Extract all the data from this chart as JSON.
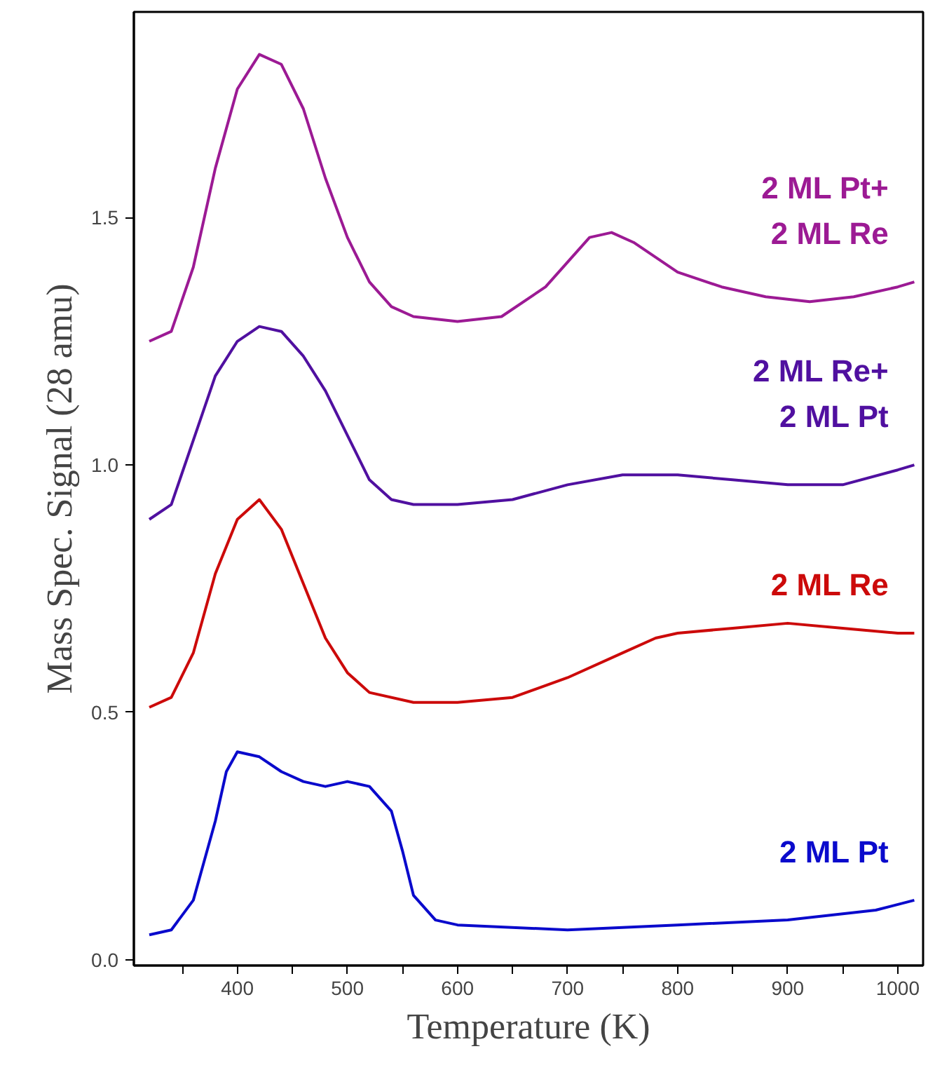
{
  "chart_data": {
    "type": "line",
    "xlabel": "Temperature (K)",
    "ylabel": "Mass Spec. Signal (28 amu)",
    "xlim": [
      306,
      1023
    ],
    "ylim": [
      -0.012,
      1.916
    ],
    "xticks": [
      {
        "value": 350,
        "label": null
      },
      400,
      {
        "value": 450,
        "label": null
      },
      500,
      {
        "value": 550,
        "label": null
      },
      600,
      {
        "value": 650,
        "label": null
      },
      700,
      {
        "value": 750,
        "label": null
      },
      800,
      {
        "value": 850,
        "label": null
      },
      900,
      {
        "value": 950,
        "label": null
      },
      1000
    ],
    "yticks": [
      {
        "value": 0,
        "label": "0.0"
      },
      {
        "value": 0.5,
        "label": "0.5"
      },
      {
        "value": 1,
        "label": "1.0"
      },
      {
        "value": 1.5,
        "label": "1.5"
      }
    ],
    "grid": false,
    "legend": false,
    "marker": "none",
    "line_style": "solid",
    "series": [
      {
        "name": "2 ML Pt+\n2 ML Re",
        "color": "#9c1a94",
        "x": [
          320,
          340,
          360,
          380,
          400,
          420,
          440,
          460,
          480,
          500,
          520,
          540,
          560,
          600,
          640,
          680,
          700,
          720,
          740,
          760,
          780,
          800,
          840,
          880,
          920,
          960,
          1000,
          1015
        ],
        "values": [
          1.25,
          1.27,
          1.4,
          1.6,
          1.76,
          1.83,
          1.81,
          1.72,
          1.58,
          1.46,
          1.37,
          1.32,
          1.3,
          1.29,
          1.3,
          1.36,
          1.41,
          1.46,
          1.47,
          1.45,
          1.42,
          1.39,
          1.36,
          1.34,
          1.33,
          1.34,
          1.36,
          1.37
        ]
      },
      {
        "name": "2 ML Re+\n2 ML Pt",
        "color": "#5010a0",
        "x": [
          320,
          340,
          360,
          380,
          400,
          420,
          440,
          460,
          480,
          500,
          520,
          540,
          560,
          600,
          650,
          700,
          750,
          800,
          850,
          900,
          950,
          1000,
          1015
        ],
        "values": [
          0.89,
          0.92,
          1.05,
          1.18,
          1.25,
          1.28,
          1.27,
          1.22,
          1.15,
          1.06,
          0.97,
          0.93,
          0.92,
          0.92,
          0.93,
          0.96,
          0.98,
          0.98,
          0.97,
          0.96,
          0.96,
          0.99,
          1.0
        ]
      },
      {
        "name": "2 ML Re",
        "color": "#cc0a0a",
        "x": [
          320,
          340,
          360,
          380,
          400,
          420,
          440,
          460,
          480,
          500,
          520,
          560,
          600,
          650,
          700,
          750,
          780,
          800,
          850,
          900,
          950,
          1000,
          1015
        ],
        "values": [
          0.51,
          0.53,
          0.62,
          0.78,
          0.89,
          0.93,
          0.87,
          0.76,
          0.65,
          0.58,
          0.54,
          0.52,
          0.52,
          0.53,
          0.57,
          0.62,
          0.65,
          0.66,
          0.67,
          0.68,
          0.67,
          0.66,
          0.66
        ]
      },
      {
        "name": "2 ML Pt",
        "color": "#0a0acc",
        "x": [
          320,
          340,
          360,
          380,
          390,
          400,
          420,
          440,
          460,
          480,
          500,
          520,
          540,
          550,
          560,
          580,
          600,
          700,
          800,
          900,
          980,
          1015
        ],
        "values": [
          0.05,
          0.06,
          0.12,
          0.28,
          0.38,
          0.42,
          0.41,
          0.38,
          0.36,
          0.35,
          0.36,
          0.35,
          0.3,
          0.22,
          0.13,
          0.08,
          0.07,
          0.06,
          0.07,
          0.08,
          0.1,
          0.12
        ]
      }
    ]
  }
}
